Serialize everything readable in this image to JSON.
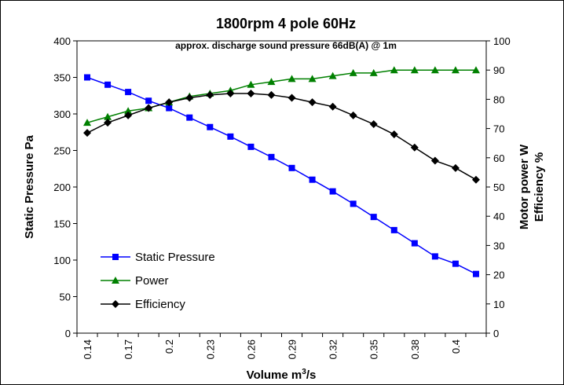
{
  "chart_data": {
    "type": "line",
    "title": "1800rpm 4 pole 60Hz",
    "subtitle": "approx. discharge sound pressure 66dB(A) @ 1m",
    "xlabel_main": "Volume m",
    "xlabel_sup": "3",
    "xlabel_suffix": "/s",
    "ylabel_left": "Static Pressure Pa",
    "ylabel_right_1": "Motor power W",
    "ylabel_right_2": "Efficiency %",
    "y_left_lim": [
      0,
      400
    ],
    "y_left_ticks": [
      "0",
      "50",
      "100",
      "150",
      "200",
      "250",
      "300",
      "350",
      "400"
    ],
    "y_right_lim": [
      0,
      100
    ],
    "y_right_ticks": [
      "0",
      "10",
      "20",
      "30",
      "40",
      "50",
      "60",
      "70",
      "80",
      "90",
      "100"
    ],
    "x_tick_labels": [
      "0.14",
      "0.17",
      "0.2",
      "0.23",
      "0.26",
      "0.29",
      "0.32",
      "0.35",
      "0.38",
      "0.4"
    ],
    "grid": false,
    "legend_position": "bottom-left",
    "series": [
      {
        "name": "Static Pressure",
        "axis": "left",
        "color": "#0000FF",
        "marker": "square",
        "values": [
          350,
          340,
          330,
          318,
          308,
          295,
          282,
          269,
          255,
          241,
          226,
          210,
          194,
          177,
          159,
          141,
          123,
          105,
          95,
          81
        ]
      },
      {
        "name": "Power",
        "axis": "right",
        "color": "#008000",
        "marker": "triangle",
        "values": [
          72,
          74,
          76,
          77,
          79,
          81,
          82,
          83,
          85,
          86,
          87,
          87,
          88,
          89,
          89,
          90,
          90,
          90,
          90,
          90
        ]
      },
      {
        "name": "Efficiency",
        "axis": "right",
        "color": "#000000",
        "marker": "diamond",
        "values": [
          68.5,
          72,
          74.5,
          77,
          79,
          80.5,
          81.5,
          82,
          82,
          81.5,
          80.5,
          79,
          77.5,
          74.5,
          71.5,
          68,
          63.5,
          59,
          56.5,
          52.5
        ]
      }
    ]
  }
}
